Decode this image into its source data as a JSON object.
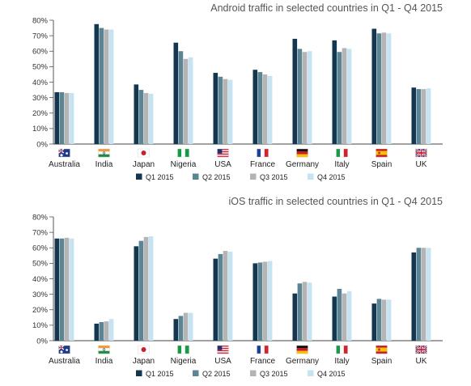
{
  "chart_data": [
    {
      "type": "bar",
      "title": "Android traffic in selected countries in Q1 - Q4 2015",
      "xlabel": "",
      "ylabel": "",
      "ylim": [
        0,
        80
      ],
      "y_ticks": [
        "0%",
        "10%",
        "20%",
        "30%",
        "40%",
        "50%",
        "60%",
        "70%",
        "80%"
      ],
      "grid": false,
      "legend_position": "bottom",
      "categories": [
        "Australia",
        "India",
        "Japan",
        "Nigeria",
        "USA",
        "France",
        "Germany",
        "Italy",
        "Spain",
        "UK"
      ],
      "category_icons": [
        "australia-flag-icon",
        "india-flag-icon",
        "japan-flag-icon",
        "nigeria-flag-icon",
        "usa-flag-icon",
        "france-flag-icon",
        "germany-flag-icon",
        "italy-flag-icon",
        "spain-flag-icon",
        "uk-flag-icon"
      ],
      "series": [
        {
          "name": "Q1 2015",
          "color": "#14374f",
          "values": [
            33.5,
            77.5,
            38.5,
            65.5,
            46,
            48,
            68,
            67,
            74.5,
            36.5
          ]
        },
        {
          "name": "Q2 2015",
          "color": "#5b8595",
          "values": [
            33.5,
            75,
            35,
            60,
            43.5,
            46.5,
            61.5,
            59.5,
            71.5,
            35.5
          ]
        },
        {
          "name": "Q3 2015",
          "color": "#b4b4b4",
          "values": [
            33,
            74,
            33,
            55,
            42,
            45,
            59.5,
            62,
            72,
            35.5
          ]
        },
        {
          "name": "Q4 2015",
          "color": "#c6e3f1",
          "values": [
            33,
            74,
            32.5,
            56,
            41.5,
            44,
            60,
            61.5,
            71.5,
            36
          ]
        }
      ]
    },
    {
      "type": "bar",
      "title": "iOS traffic in selected countries in Q1 - Q4 2015",
      "xlabel": "",
      "ylabel": "",
      "ylim": [
        0,
        80
      ],
      "y_ticks": [
        "0%",
        "10%",
        "20%",
        "30%",
        "40%",
        "50%",
        "60%",
        "70%",
        "80%"
      ],
      "grid": false,
      "legend_position": "bottom",
      "categories": [
        "Australia",
        "India",
        "Japan",
        "Nigeria",
        "USA",
        "France",
        "Germany",
        "Italy",
        "Spain",
        "UK"
      ],
      "category_icons": [
        "australia-flag-icon",
        "india-flag-icon",
        "japan-flag-icon",
        "nigeria-flag-icon",
        "usa-flag-icon",
        "france-flag-icon",
        "germany-flag-icon",
        "italy-flag-icon",
        "spain-flag-icon",
        "uk-flag-icon"
      ],
      "series": [
        {
          "name": "Q1 2015",
          "color": "#14374f",
          "values": [
            66,
            11,
            61,
            14,
            53,
            50,
            30.5,
            28.5,
            24,
            57
          ]
        },
        {
          "name": "Q2 2015",
          "color": "#5b8595",
          "values": [
            66,
            12,
            64.5,
            16,
            56,
            50.5,
            37,
            33.5,
            27,
            60
          ]
        },
        {
          "name": "Q3 2015",
          "color": "#b4b4b4",
          "values": [
            66.5,
            12.5,
            67,
            18,
            58,
            51,
            38,
            30.5,
            26.5,
            60
          ]
        },
        {
          "name": "Q4 2015",
          "color": "#c6e3f1",
          "values": [
            66,
            14,
            67.5,
            18,
            57.5,
            51.5,
            37.5,
            32,
            26.5,
            60
          ]
        }
      ]
    }
  ]
}
